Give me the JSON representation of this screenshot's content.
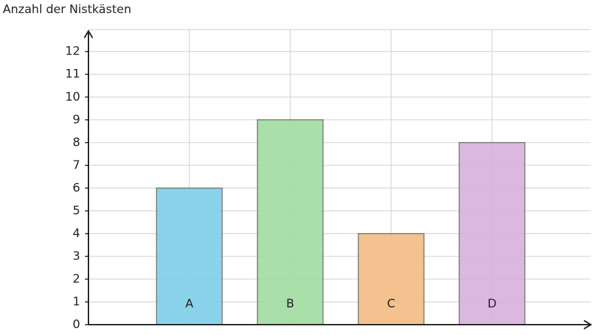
{
  "chart_data": {
    "type": "bar",
    "y_label": "Anzahl der Nistkästen",
    "categories": [
      "A",
      "B",
      "C",
      "D"
    ],
    "values": [
      6,
      9,
      4,
      8
    ],
    "colors": [
      "#7ecde9",
      "#a0dba0",
      "#f3bb82",
      "#d7b0dc"
    ],
    "ylim": [
      0,
      12.9
    ],
    "yticks": [
      0,
      1,
      2,
      3,
      4,
      5,
      6,
      7,
      8,
      9,
      10,
      11,
      12
    ],
    "grid": true
  }
}
